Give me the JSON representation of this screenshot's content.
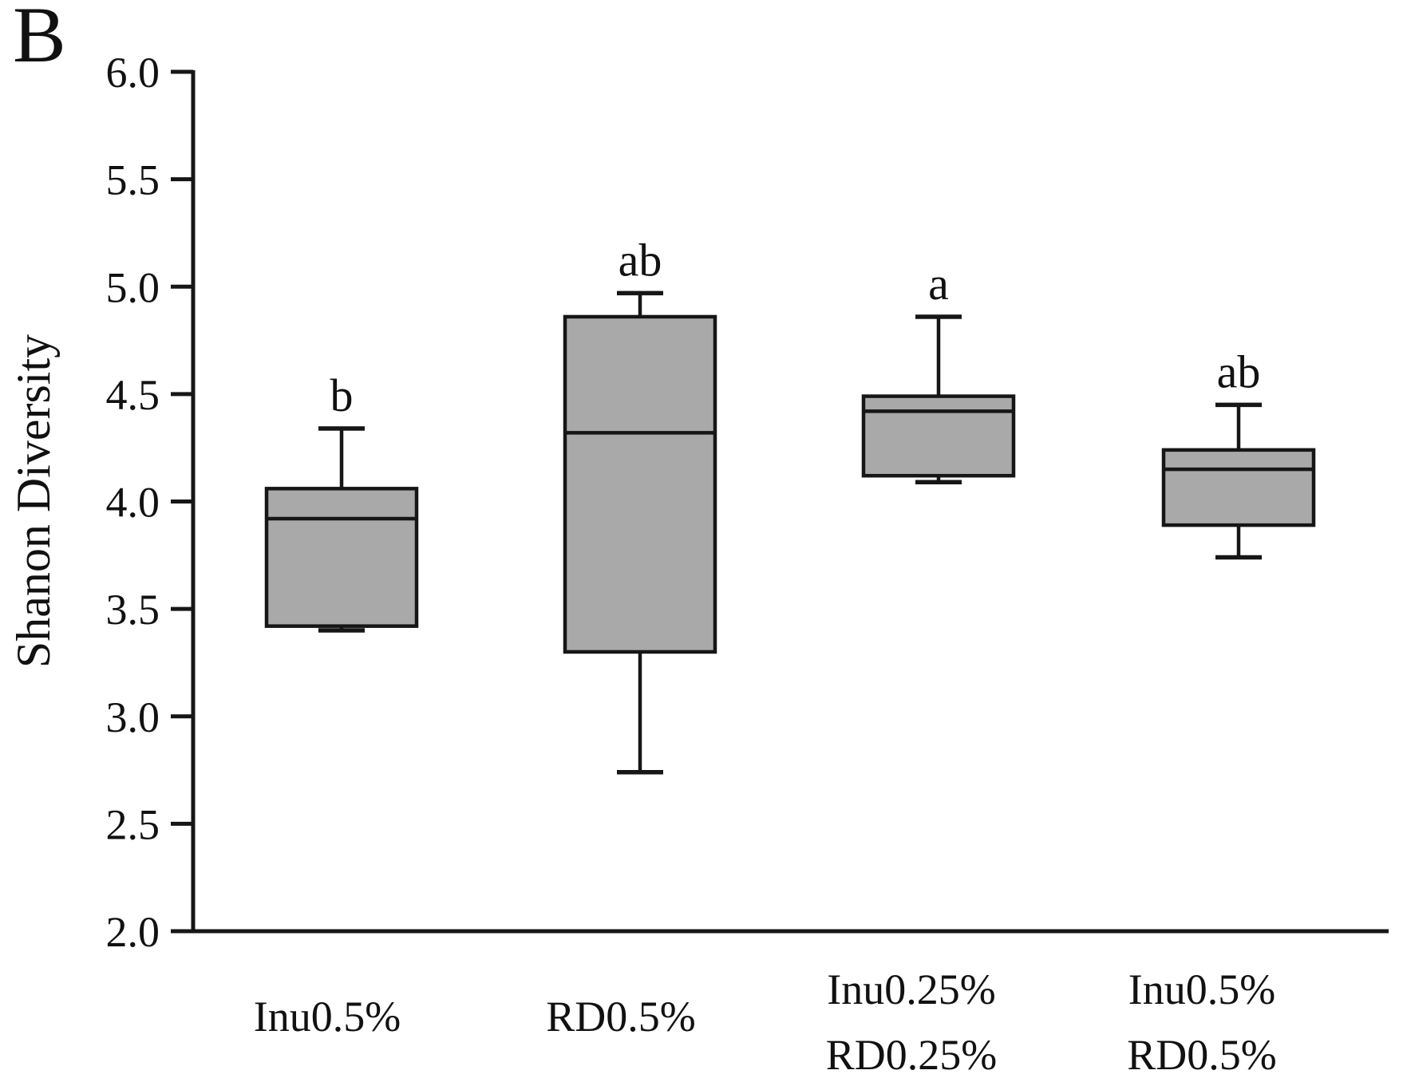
{
  "panel_label": "B",
  "background_color": "#ffffff",
  "chart_data": {
    "type": "box",
    "title": "",
    "xlabel": "",
    "ylabel": "Shanon Diversity",
    "ylim": [
      2.0,
      6.0
    ],
    "ytick_step": 0.5,
    "ytick_labels": [
      "6.0",
      "5.5",
      "5.0",
      "4.5",
      "4.0",
      "3.5",
      "3.0",
      "2.5",
      "2.0"
    ],
    "grid": false,
    "legend": false,
    "box_fill_color": "#a9a9a9",
    "line_color": "#161616",
    "categories": [
      [
        "Inu0.5%"
      ],
      [
        "RD0.5%"
      ],
      [
        "Inu0.25%",
        "RD0.25%"
      ],
      [
        "Inu0.5%",
        "RD0.5%"
      ]
    ],
    "series": [
      {
        "name": "Inu0.5%",
        "sig_letter": "b",
        "whisker_low": 3.4,
        "q1": 3.42,
        "median": 3.92,
        "q3": 4.06,
        "whisker_high": 4.34
      },
      {
        "name": "RD0.5%",
        "sig_letter": "ab",
        "whisker_low": 2.74,
        "q1": 3.3,
        "median": 4.32,
        "q3": 4.86,
        "whisker_high": 4.97
      },
      {
        "name": "Inu0.25% RD0.25%",
        "sig_letter": "a",
        "whisker_low": 4.09,
        "q1": 4.12,
        "median": 4.42,
        "q3": 4.49,
        "whisker_high": 4.86
      },
      {
        "name": "Inu0.5% RD0.5%",
        "sig_letter": "ab",
        "whisker_low": 3.74,
        "q1": 3.89,
        "median": 4.15,
        "q3": 4.24,
        "whisker_high": 4.45
      }
    ]
  }
}
